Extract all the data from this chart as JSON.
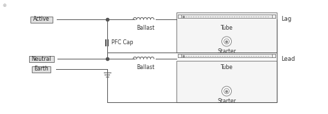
{
  "bg_color": "#ffffff",
  "line_color": "#555555",
  "box_color": "#888888",
  "label_color": "#333333",
  "labels": {
    "active": "Active",
    "neutral": "Neutral",
    "earth": "Earth",
    "ballast": "Ballast",
    "pfc_cap": "PFC Cap",
    "tube": "Tube",
    "starter": "Starter",
    "lag": "Lag",
    "lead": "Lead"
  },
  "fig_width": 4.74,
  "fig_height": 1.65,
  "dpi": 100
}
